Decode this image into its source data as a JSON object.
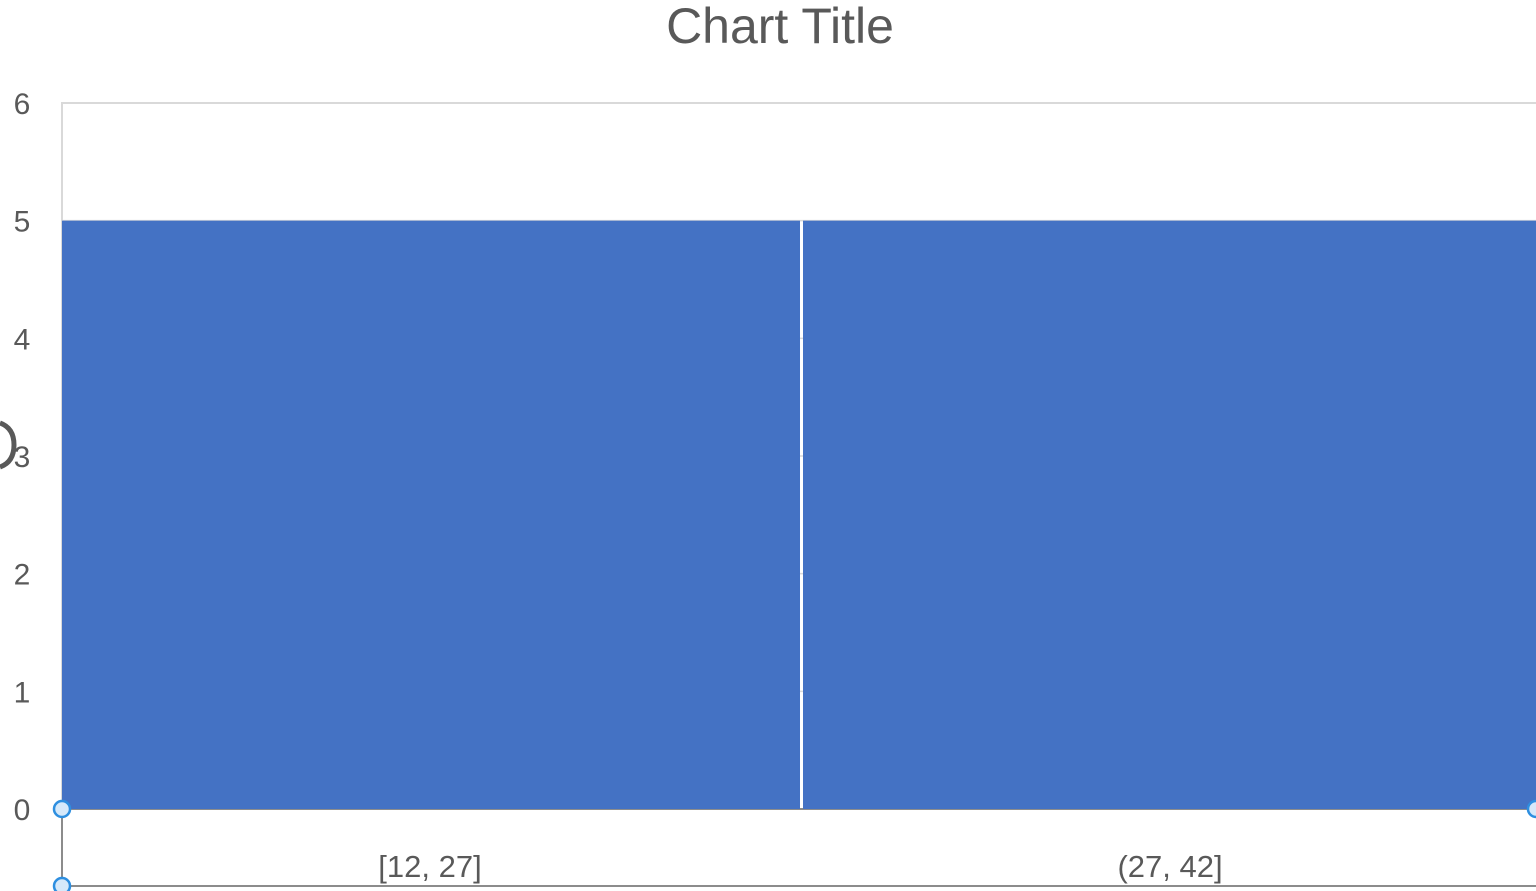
{
  "chart_data": {
    "type": "bar",
    "subtype": "histogram",
    "title": "Chart Title",
    "categories": [
      "[12, 27]",
      "(27, 42]"
    ],
    "values": [
      5,
      5
    ],
    "ylim": [
      0,
      6
    ],
    "yticks": [
      "0",
      "1",
      "2",
      "3",
      "4",
      "5",
      "6"
    ],
    "grid": true,
    "legend": "none",
    "selected": true,
    "colors": {
      "bar": "#4472C4",
      "text": "#595959",
      "grid": "#D9D9D9",
      "handle": "#2E8FE0"
    }
  }
}
